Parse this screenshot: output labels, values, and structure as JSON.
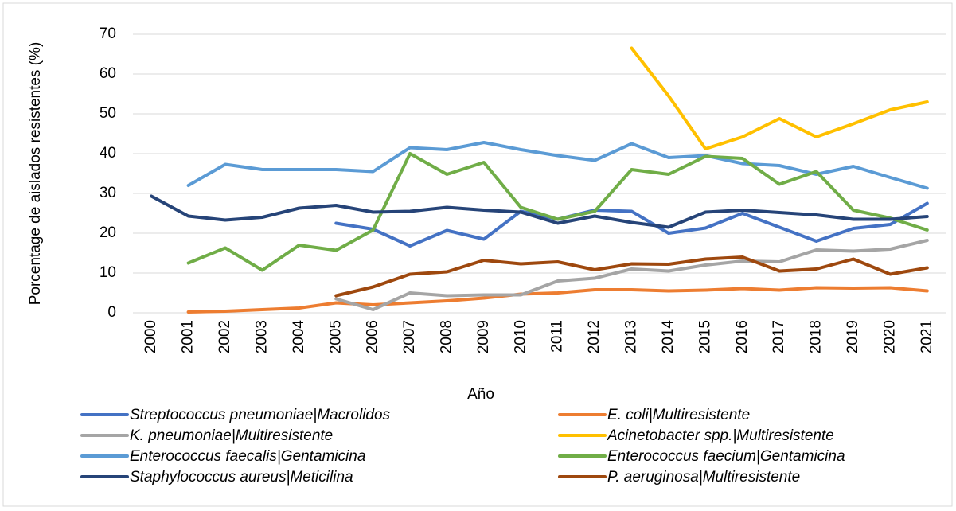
{
  "chart_data": {
    "type": "line",
    "ylabel": "Porcentage de aislados resistentes (%)",
    "xlabel": "Año",
    "categories": [
      "2000",
      "2001",
      "2002",
      "2003",
      "2004",
      "2005",
      "2006",
      "2007",
      "2008",
      "2009",
      "2010",
      "2011",
      "2012",
      "2013",
      "2014",
      "2015",
      "2016",
      "2017",
      "2018",
      "2019",
      "2020",
      "2021"
    ],
    "ylim": [
      0,
      70
    ],
    "yticks": [
      0,
      10,
      20,
      30,
      40,
      50,
      60,
      70
    ],
    "grid": true,
    "series": [
      {
        "name": "Streptococcus pneumoniae|Macrolidos",
        "color": "#4472c4",
        "values": [
          null,
          null,
          null,
          null,
          null,
          22.5,
          21,
          16.8,
          20.7,
          18.5,
          25.5,
          23.5,
          25.8,
          25.5,
          20,
          21.3,
          25,
          21.5,
          18,
          21.2,
          22.2,
          27.5
        ]
      },
      {
        "name": "E. coli|Multiresistente",
        "color": "#ed7d31",
        "values": [
          null,
          0.2,
          0.4,
          0.8,
          1.2,
          2.5,
          2,
          2.5,
          3,
          3.7,
          4.7,
          5,
          5.8,
          5.8,
          5.5,
          5.7,
          6.1,
          5.7,
          6.3,
          6.2,
          6.3,
          5.5
        ]
      },
      {
        "name": "K. pneumoniae|Multiresistente",
        "color": "#a5a5a5",
        "values": [
          null,
          null,
          null,
          null,
          null,
          3.5,
          0.8,
          5,
          4.3,
          4.5,
          4.5,
          8,
          8.7,
          11,
          10.5,
          12,
          13,
          12.8,
          15.8,
          15.5,
          16,
          18.2
        ]
      },
      {
        "name": "Acinetobacter spp.|Multiresistente",
        "color": "#ffc000",
        "values": [
          null,
          null,
          null,
          null,
          null,
          null,
          null,
          null,
          null,
          null,
          null,
          null,
          null,
          66.5,
          54.5,
          41.2,
          44.2,
          48.8,
          44.2,
          47.5,
          51,
          53
        ]
      },
      {
        "name": "Enterococcus faecalis|Gentamicina",
        "color": "#5b9bd5",
        "values": [
          null,
          32,
          37.3,
          36,
          36,
          36,
          35.5,
          41.5,
          41,
          42.8,
          41,
          39.5,
          38.3,
          42.5,
          39,
          39.5,
          37.5,
          37,
          34.8,
          36.8,
          34,
          31.3
        ]
      },
      {
        "name": "Enterococcus faecium|Gentamicina",
        "color": "#70ad47",
        "values": [
          null,
          12.5,
          16.3,
          10.7,
          17,
          15.7,
          20.8,
          40,
          34.8,
          37.8,
          26.5,
          23.5,
          25.5,
          36,
          34.8,
          39.3,
          38.8,
          32.3,
          35.5,
          25.8,
          23.8,
          20.8
        ]
      },
      {
        "name": "Staphylococcus aureus|Meticilina",
        "color": "#264478",
        "values": [
          29.3,
          24.3,
          23.3,
          24,
          26.3,
          27,
          25.3,
          25.5,
          26.5,
          25.8,
          25.3,
          22.5,
          24.3,
          22.7,
          21.5,
          25.3,
          25.8,
          25.2,
          24.6,
          23.5,
          23.5,
          24.2
        ]
      },
      {
        "name": "P. aeruginosa|Multiresistente",
        "color": "#9e480e",
        "values": [
          null,
          null,
          null,
          null,
          null,
          4.3,
          6.5,
          9.7,
          10.3,
          13.2,
          12.3,
          12.8,
          10.8,
          12.3,
          12.2,
          13.5,
          14,
          10.5,
          11,
          13.5,
          9.7,
          11.3
        ]
      }
    ]
  }
}
